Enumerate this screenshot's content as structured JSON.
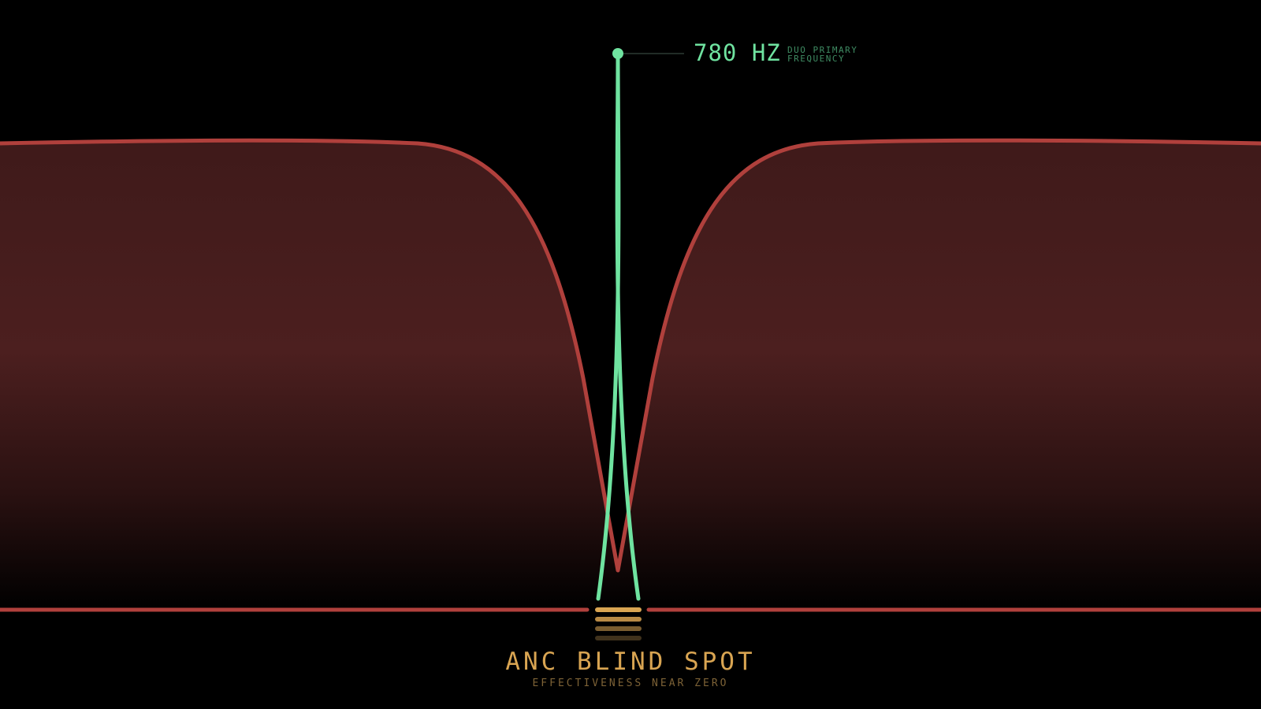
{
  "frequency": {
    "value": "780 HZ",
    "label_line1": "DUO PRIMARY",
    "label_line2": "FREQUENCY"
  },
  "callout": {
    "title": "ANC BLIND SPOT",
    "subtitle": "EFFECTIVENESS NEAR ZERO"
  },
  "colors": {
    "background": "#000000",
    "anc_curve": "#b0403c",
    "anc_fill": "#4a1e1e",
    "peak": "#6fe3a0",
    "warning": "#d9a552"
  }
}
